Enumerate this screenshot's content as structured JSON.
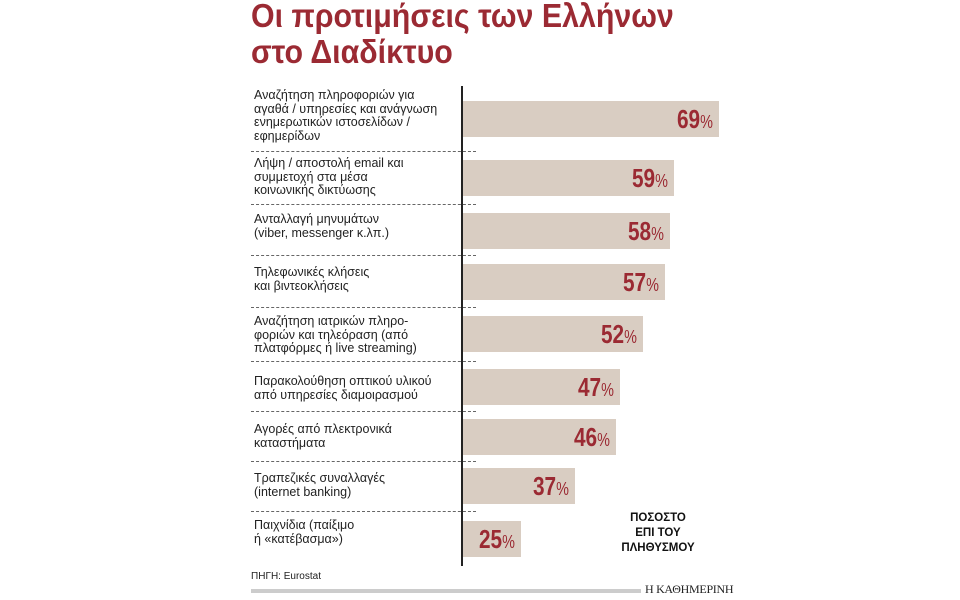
{
  "chart_data": {
    "type": "bar",
    "orientation": "horizontal",
    "title": "Οι προτιμήσεις των Ελλήνων στο Διαδίκτυο",
    "title_lines": [
      "Οι προτιμήσεις των Ελλήνων",
      "στο Διαδίκτυο"
    ],
    "categories": [
      "Αναζήτηση πληροφοριών για\nαγαθά / υπηρεσίες και ανάγνωση\nενημερωτικών ιστοσελίδων /\nεφημερίδων",
      "Λήψη / αποστολή email και\nσυμμετοχή στα μέσα\nκοινωνικής δικτύωσης",
      "Ανταλλαγή μηνυμάτων\n(viber, messenger κ.λπ.)",
      "Τηλεφωνικές κλήσεις\nκαι βιντεοκλήσεις",
      "Αναζήτηση ιατρικών πληρο-\nφοριών και τηλεόραση (από\nπλατφόρμες ή live streaming)",
      "Παρακολούθηση οπτικού υλικού\nαπό υπηρεσίες διαμοιρασμού",
      "Αγορές από πλεκτρονικά\nκαταστήματα",
      "Τραπεζικές συναλλαγές\n(internet banking)",
      "Παιχνίδια (παίξιμο\nή «κατέβασμα»)"
    ],
    "values": [
      69,
      59,
      58,
      57,
      52,
      47,
      46,
      37,
      25
    ],
    "value_suffix": "%",
    "unit_label": "ΠΟΣΟΣΤΟ\nΕΠΙ ΤΟΥ\nΠΛΗΘΥΣΜΟΥ",
    "grid": false,
    "colors": {
      "bar": "#d9cdc2",
      "value": "#9b2a33",
      "title": "#9b2a33"
    }
  },
  "footer": {
    "source": "ΠΗΓΗ: Eurostat",
    "logo": "Η ΚΑΘΗΜΕΡΙΝΗ"
  }
}
